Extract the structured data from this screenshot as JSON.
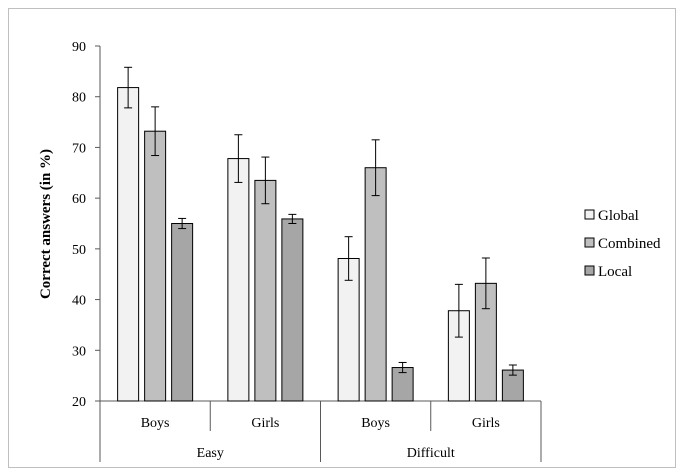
{
  "chart_data": {
    "type": "bar",
    "ylabel": "Correct answers (in %)",
    "ylim": [
      20,
      90
    ],
    "yticks": [
      20,
      30,
      40,
      50,
      60,
      70,
      80,
      90
    ],
    "groups": [
      {
        "label": "Easy",
        "categories": [
          "Boys",
          "Girls"
        ]
      },
      {
        "label": "Difficult",
        "categories": [
          "Boys",
          "Girls"
        ]
      }
    ],
    "categories": [
      "Boys",
      "Girls",
      "Boys",
      "Girls"
    ],
    "series": [
      {
        "name": "Global",
        "color": "#f2f2f2",
        "values": [
          81.8,
          67.8,
          48.1,
          37.8
        ],
        "errors": [
          4.0,
          4.7,
          4.3,
          5.2
        ]
      },
      {
        "name": "Combined",
        "color": "#bfbfbf",
        "values": [
          73.2,
          63.5,
          66.0,
          43.2
        ],
        "errors": [
          4.8,
          4.6,
          5.5,
          5.0
        ]
      },
      {
        "name": "Local",
        "color": "#a6a6a6",
        "values": [
          55.0,
          55.9,
          26.6,
          26.1
        ],
        "errors": [
          1.0,
          0.9,
          1.0,
          1.0
        ]
      }
    ],
    "legend_position": "right",
    "grid": false
  }
}
